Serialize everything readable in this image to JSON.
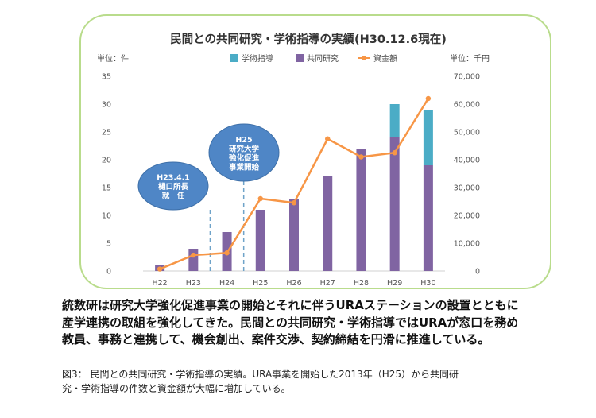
{
  "chart_data": {
    "type": "bar",
    "title": "民間との共同研究・学術指導の実績(H30.12.6現在)",
    "ylabel_left": "単位：件",
    "ylabel_right": "単位：千円",
    "categories": [
      "H22",
      "H23",
      "H24",
      "H25",
      "H26",
      "H27",
      "H28",
      "H29",
      "H30"
    ],
    "series": [
      {
        "name": "学術指導",
        "kind": "stacked-bar",
        "color": "#4bacc6",
        "values": [
          0,
          0,
          0,
          0,
          0,
          0,
          0,
          6,
          10
        ]
      },
      {
        "name": "共同研究",
        "kind": "stacked-bar",
        "color": "#8064a2",
        "values": [
          1,
          4,
          7,
          11,
          13,
          17,
          22,
          24,
          19
        ]
      },
      {
        "name": "資金額",
        "kind": "line",
        "color": "#f79646",
        "axis": "right",
        "values": [
          700,
          5700,
          6500,
          26000,
          24500,
          47500,
          41000,
          42500,
          62000
        ]
      }
    ],
    "ylim_left": [
      0,
      35
    ],
    "yticks_left": [
      0,
      5,
      10,
      15,
      20,
      25,
      30,
      35
    ],
    "ylim_right": [
      0,
      70000
    ],
    "yticks_right": [
      "0",
      "10,000",
      "20,000",
      "30,000",
      "40,000",
      "50,000",
      "60,000",
      "70,000"
    ],
    "legend_position": "top-center",
    "grid": false,
    "annotations": [
      {
        "lines": [
          "H23.4.1",
          "樋口所長",
          "就　任"
        ],
        "x_between": [
          "H23",
          "H24"
        ]
      },
      {
        "lines": [
          "H25",
          "研究大学",
          "強化促進",
          "事業開始"
        ],
        "x_between": [
          "H24",
          "H25"
        ]
      }
    ]
  },
  "body_text": [
    "統数研は研究大学強化促進事業の開始とそれに伴うURAステーションの設置とともに",
    "産学連携の取組を強化してきた。民間との共同研究・学術指導ではURAが窓口を務め",
    "教員、事務と連携して、機会創出、案件交渉、契約締結を円滑に推進している。"
  ],
  "caption": [
    "図3：  民間との共同研究・学術指導の実績。URA事業を開始した2013年（H25）から共同研",
    "究・学術指導の件数と資金額が大幅に増加している。"
  ]
}
